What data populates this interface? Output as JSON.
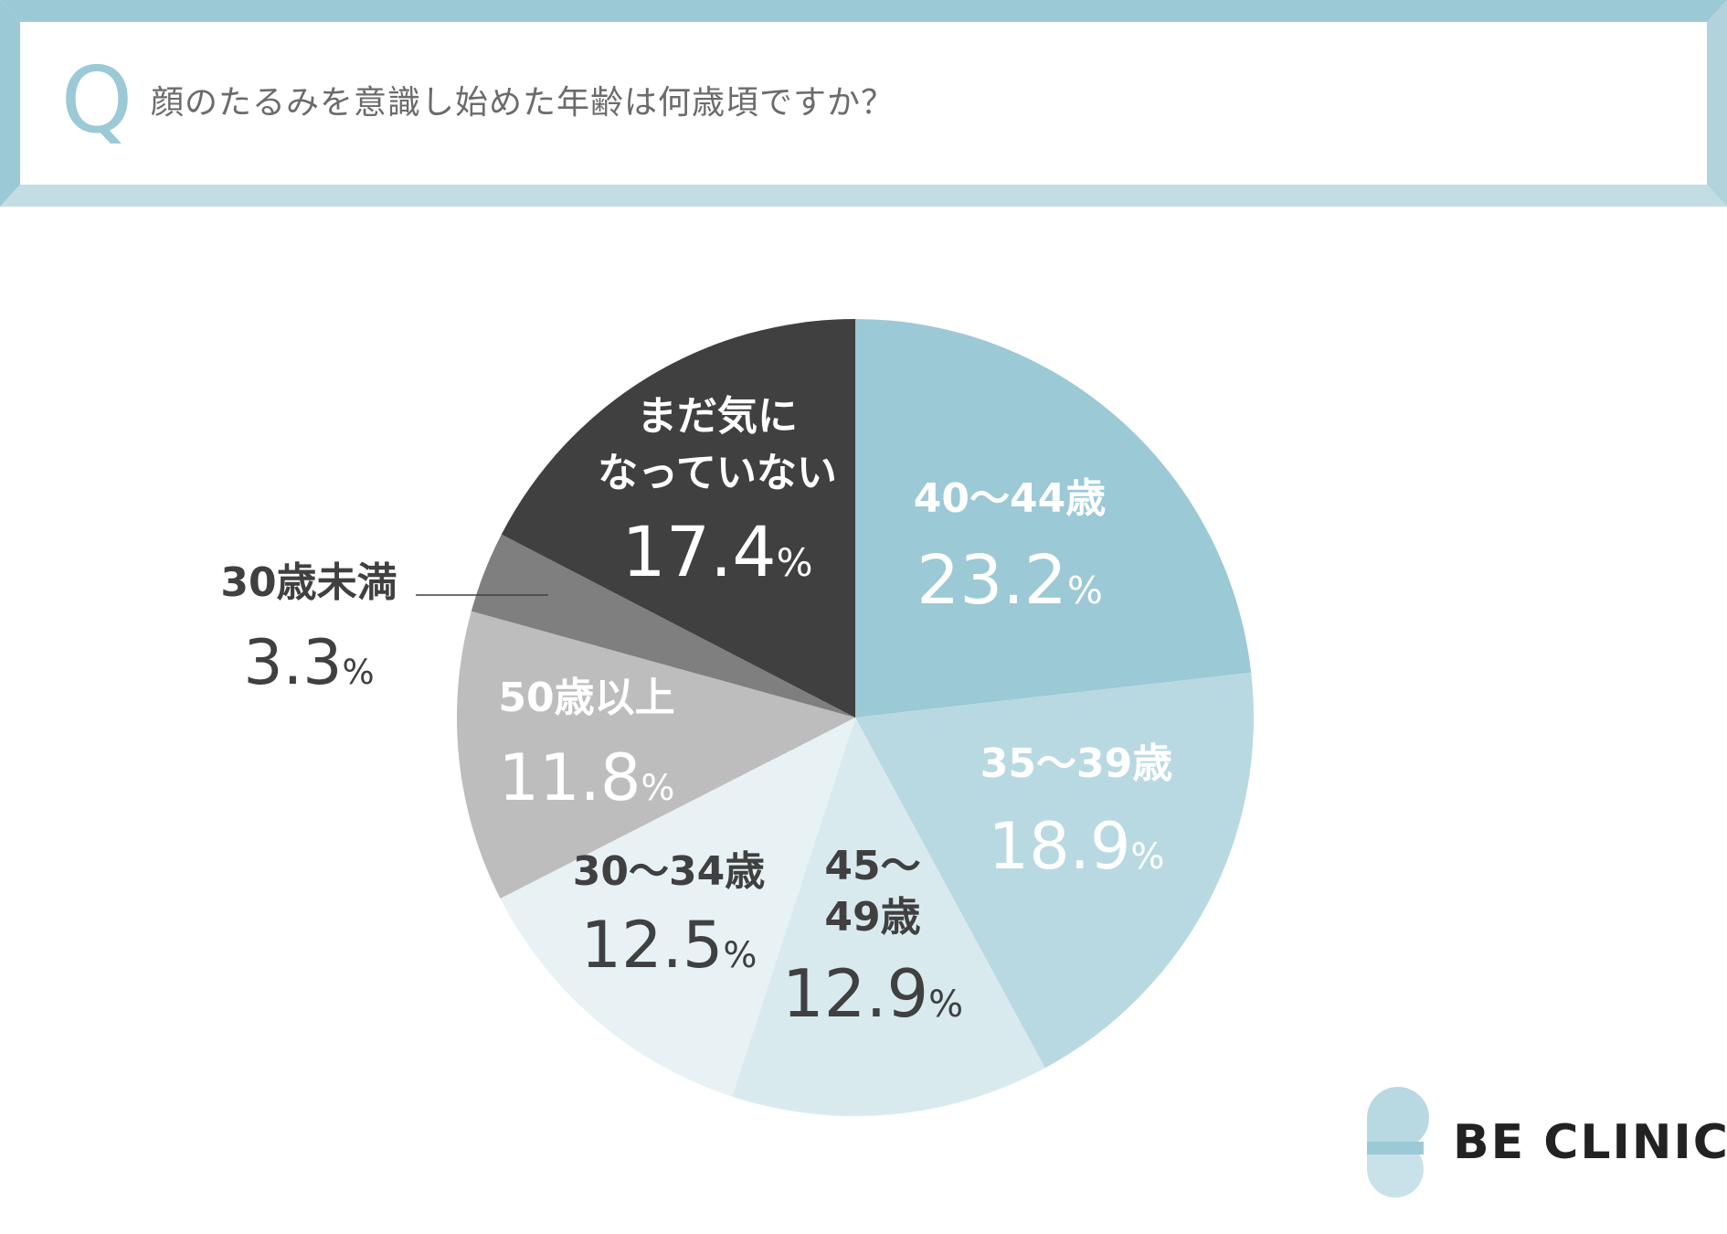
{
  "header": {
    "q_mark": "Q",
    "question": "顔のたるみを意識し始めた年齢は何歳頃ですか？"
  },
  "logo": {
    "text": "BE CLINIC"
  },
  "colors": {
    "frame_top": "#9bc9d5",
    "frame_bottom": "#c3dde4",
    "frame_inner_shadow": "#b2d3dc"
  },
  "chart_data": {
    "type": "pie",
    "start_angle_deg": 0,
    "direction": "clockwise",
    "unit": "%",
    "slices": [
      {
        "label": "40〜44歳",
        "value": 23.2,
        "value_text": "23.2",
        "color": "#9bc9d5",
        "text_color": "#ffffff"
      },
      {
        "label": "35〜39歳",
        "value": 18.9,
        "value_text": "18.9",
        "color": "#b8d9e2",
        "text_color": "#ffffff"
      },
      {
        "label": "45〜49歳",
        "label_lines": [
          "45〜",
          "49歳"
        ],
        "value": 12.9,
        "value_text": "12.9",
        "color": "#d9eaef",
        "text_color": "#404040"
      },
      {
        "label": "30〜34歳",
        "value": 12.5,
        "value_text": "12.5",
        "color": "#e8f2f5",
        "text_color": "#404040"
      },
      {
        "label": "50歳以上",
        "value": 11.8,
        "value_text": "11.8",
        "color": "#bdbdbd",
        "text_color": "#ffffff"
      },
      {
        "label": "30歳未満",
        "value": 3.3,
        "value_text": "3.3",
        "color": "#7f7f7f",
        "text_color": "#404040",
        "external": true
      },
      {
        "label": "まだ気になっていない",
        "label_lines": [
          "まだ気に",
          "なっていない"
        ],
        "value": 17.4,
        "value_text": "17.4",
        "color": "#404040",
        "text_color": "#ffffff"
      }
    ]
  }
}
